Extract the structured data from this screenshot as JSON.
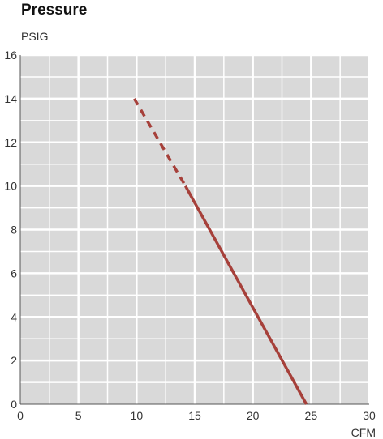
{
  "chart_data": {
    "type": "line",
    "title": "Pressure",
    "ylabel": "PSIG",
    "xlabel": "CFM",
    "xlim": [
      0,
      30
    ],
    "ylim": [
      0,
      16
    ],
    "xticks": [
      0,
      5,
      10,
      15,
      20,
      25,
      30
    ],
    "yticks": [
      0,
      2,
      4,
      6,
      8,
      10,
      12,
      14,
      16
    ],
    "grid": true,
    "plot_background": "#d9d9d9",
    "series": [
      {
        "color": "#a6403a",
        "segments": [
          {
            "style": "dashed",
            "x": [
              9.8,
              14.2
            ],
            "y": [
              14,
              10
            ]
          },
          {
            "style": "solid",
            "x": [
              14.2,
              24.6
            ],
            "y": [
              10,
              0
            ]
          }
        ]
      }
    ]
  }
}
